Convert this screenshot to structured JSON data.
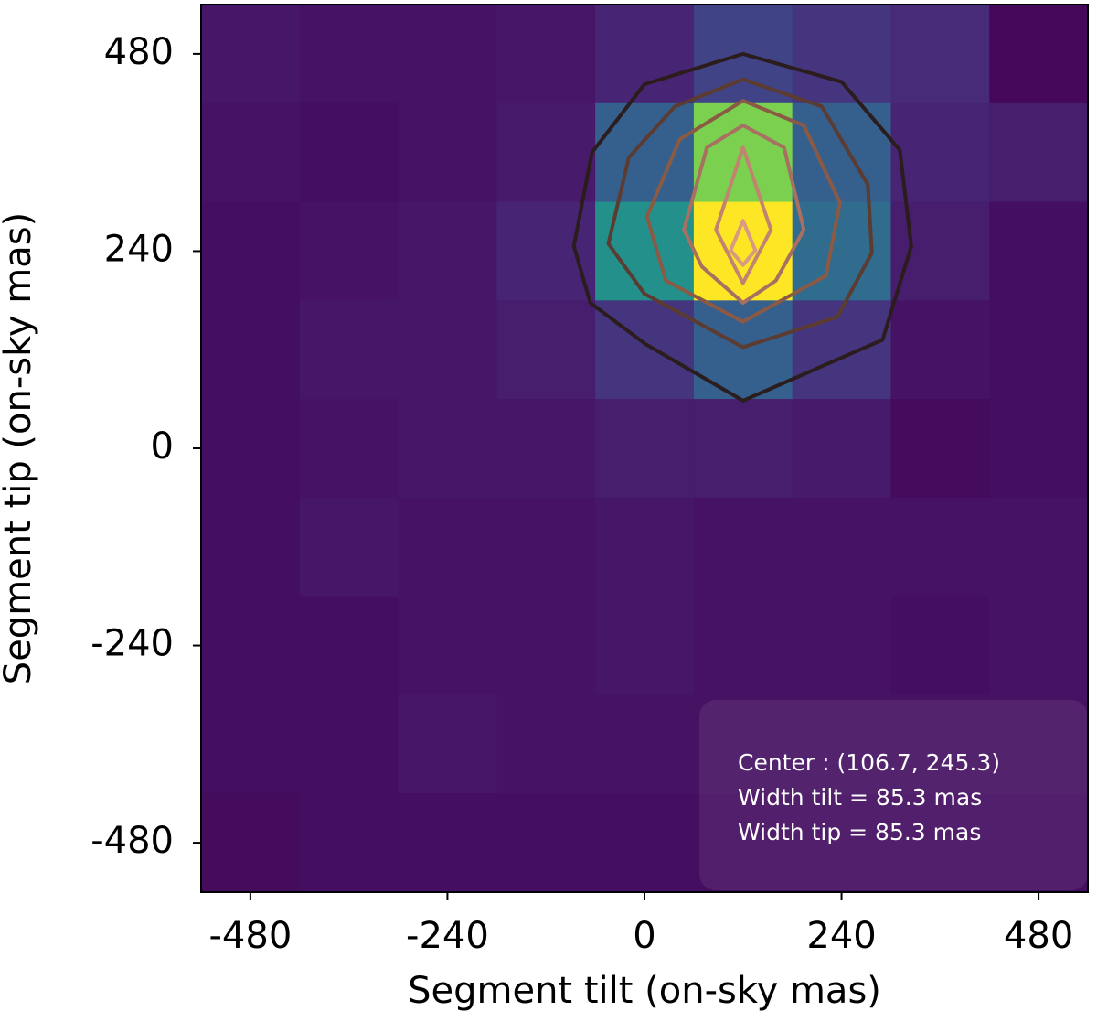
{
  "chart_data": {
    "type": "heatmap",
    "colormap": "viridis",
    "xlabel": "Segment tilt (on-sky mas)",
    "ylabel": "Segment tip (on-sky mas)",
    "xlim": [
      -540,
      540
    ],
    "ylim": [
      -540,
      540
    ],
    "xticks": [
      -480,
      -240,
      0,
      240,
      480
    ],
    "yticks": [
      -480,
      -240,
      0,
      240,
      480
    ],
    "x": [
      -480,
      -360,
      -240,
      -120,
      0,
      120,
      240,
      360,
      480
    ],
    "y": [
      480,
      360,
      240,
      120,
      0,
      -120,
      -240,
      -360,
      -480
    ],
    "z": [
      [
        0.06,
        0.05,
        0.05,
        0.06,
        0.1,
        0.2,
        0.15,
        0.12,
        0.02
      ],
      [
        0.05,
        0.04,
        0.05,
        0.07,
        0.3,
        0.8,
        0.3,
        0.1,
        0.08
      ],
      [
        0.04,
        0.05,
        0.06,
        0.1,
        0.5,
        1.0,
        0.35,
        0.08,
        0.04
      ],
      [
        0.04,
        0.06,
        0.06,
        0.08,
        0.15,
        0.3,
        0.15,
        0.05,
        0.04
      ],
      [
        0.04,
        0.05,
        0.06,
        0.06,
        0.08,
        0.08,
        0.07,
        0.03,
        0.04
      ],
      [
        0.04,
        0.06,
        0.05,
        0.05,
        0.06,
        0.05,
        0.05,
        0.05,
        0.05
      ],
      [
        0.04,
        0.04,
        0.05,
        0.05,
        0.06,
        0.05,
        0.05,
        0.04,
        0.05
      ],
      [
        0.04,
        0.04,
        0.06,
        0.05,
        0.05,
        0.05,
        0.05,
        0.05,
        0.05
      ],
      [
        0.03,
        0.04,
        0.04,
        0.04,
        0.04,
        0.04,
        0.04,
        0.04,
        0.04
      ]
    ],
    "contours": [
      {
        "color": "#2b1d1d",
        "x": [
          120,
          240,
          311,
          325,
          290,
          120,
          1,
          -66,
          -86,
          -64,
          0
        ],
        "y": [
          480,
          446,
          363,
          246,
          132,
          58,
          127,
          177,
          246,
          360,
          443
        ]
      },
      {
        "color": "#5c3b30",
        "x": [
          120,
          216,
          272,
          277,
          235,
          120,
          0,
          -44,
          -19,
          37
        ],
        "y": [
          449,
          416,
          321,
          238,
          160,
          123,
          188,
          249,
          354,
          416
        ]
      },
      {
        "color": "#8a5a45",
        "x": [
          120,
          194,
          238,
          221,
          120,
          26,
          3,
          43
        ],
        "y": [
          423,
          393,
          299,
          210,
          154,
          204,
          282,
          376
        ]
      },
      {
        "color": "#a87060",
        "x": [
          120,
          170,
          194,
          160,
          120,
          70,
          48,
          76
        ],
        "y": [
          393,
          366,
          266,
          204,
          177,
          221,
          266,
          366
        ]
      },
      {
        "color": "#c08470",
        "x": [
          120,
          154,
          120,
          87
        ],
        "y": [
          366,
          266,
          201,
          266
        ]
      },
      {
        "color": "#d89a80",
        "x": [
          120,
          135,
          120,
          105
        ],
        "y": [
          277,
          241,
          223,
          241
        ]
      }
    ],
    "annotation": [
      "Center : (106.7, 245.3)",
      "Width tilt = 85.3 mas",
      "Width tip = 85.3 mas"
    ]
  }
}
